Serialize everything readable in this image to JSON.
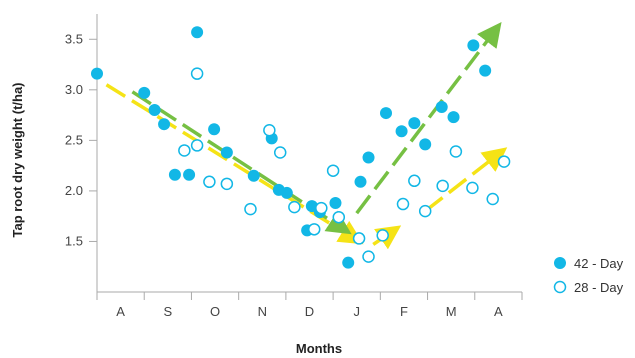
{
  "chart_data": {
    "type": "scatter",
    "xlabel": "Months",
    "ylabel": "Tap root dry weight (t/ha)",
    "categories": [
      "A",
      "S",
      "O",
      "N",
      "D",
      "J",
      "F",
      "M",
      "A"
    ],
    "xlim": [
      0,
      9
    ],
    "ylim": [
      1.0,
      3.75
    ],
    "yticks": [
      "1.5",
      "2.0",
      "2.5",
      "3.0",
      "3.5"
    ],
    "ytick_values": [
      1.5,
      2.0,
      2.5,
      3.0,
      3.5
    ],
    "grid": false,
    "legend_position": "bottom-right",
    "series": [
      {
        "name": "42 - Day",
        "marker": "filled-circle",
        "color": "#12b7e6",
        "points": [
          [
            0,
            3.16
          ],
          [
            1.0,
            2.97
          ],
          [
            1.22,
            2.8
          ],
          [
            1.42,
            2.66
          ],
          [
            1.65,
            2.16
          ],
          [
            1.95,
            2.16
          ],
          [
            2.12,
            3.57
          ],
          [
            2.48,
            2.61
          ],
          [
            2.75,
            2.38
          ],
          [
            3.32,
            2.15
          ],
          [
            3.7,
            2.52
          ],
          [
            3.85,
            2.01
          ],
          [
            4.02,
            1.98
          ],
          [
            4.45,
            1.61
          ],
          [
            4.55,
            1.85
          ],
          [
            4.72,
            1.79
          ],
          [
            5.05,
            1.88
          ],
          [
            5.32,
            1.29
          ],
          [
            5.58,
            2.09
          ],
          [
            5.75,
            2.33
          ],
          [
            6.12,
            2.77
          ],
          [
            6.45,
            2.59
          ],
          [
            6.72,
            2.67
          ],
          [
            6.95,
            2.46
          ],
          [
            7.3,
            2.83
          ],
          [
            7.55,
            2.73
          ],
          [
            7.97,
            3.44
          ],
          [
            8.22,
            3.19
          ]
        ]
      },
      {
        "name": "28 - Day",
        "marker": "open-circle",
        "color": "#12b7e6",
        "points": [
          [
            1.85,
            2.4
          ],
          [
            2.12,
            3.16
          ],
          [
            2.12,
            2.45
          ],
          [
            2.38,
            2.09
          ],
          [
            2.75,
            2.07
          ],
          [
            3.25,
            1.82
          ],
          [
            3.65,
            2.6
          ],
          [
            3.88,
            2.38
          ],
          [
            4.18,
            1.84
          ],
          [
            4.6,
            1.62
          ],
          [
            4.75,
            1.83
          ],
          [
            5.0,
            2.2
          ],
          [
            5.12,
            1.74
          ],
          [
            5.55,
            1.53
          ],
          [
            5.75,
            1.35
          ],
          [
            6.05,
            1.56
          ],
          [
            6.48,
            1.87
          ],
          [
            6.72,
            2.1
          ],
          [
            6.95,
            1.8
          ],
          [
            7.32,
            2.05
          ],
          [
            7.6,
            2.39
          ],
          [
            7.95,
            2.03
          ],
          [
            8.38,
            1.92
          ],
          [
            8.62,
            2.29
          ]
        ]
      }
    ],
    "trend_arrows": [
      {
        "color": "#f5e316",
        "style": "dashed",
        "from": [
          0.2,
          3.05
        ],
        "to": [
          5.55,
          1.5
        ]
      },
      {
        "color": "#76c043",
        "style": "dashed",
        "from": [
          0.75,
          2.98
        ],
        "to": [
          5.3,
          1.6
        ]
      },
      {
        "color": "#f5e316",
        "style": "dashed",
        "from": [
          5.85,
          1.47
        ],
        "to": [
          6.35,
          1.63
        ]
      },
      {
        "color": "#76c043",
        "style": "dashed",
        "from": [
          5.5,
          1.78
        ],
        "to": [
          8.5,
          3.63
        ]
      },
      {
        "color": "#f5e316",
        "style": "dashed",
        "from": [
          6.95,
          1.8
        ],
        "to": [
          8.6,
          2.4
        ]
      }
    ]
  }
}
